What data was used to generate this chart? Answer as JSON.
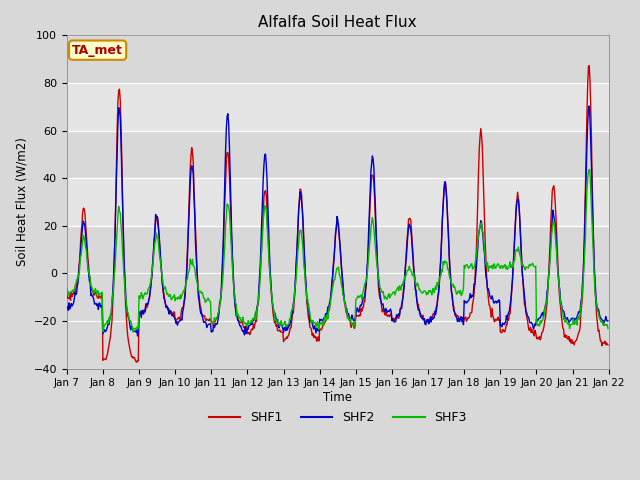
{
  "title": "Alfalfa Soil Heat Flux",
  "ylabel": "Soil Heat Flux (W/m2)",
  "xlabel": "Time",
  "ylim": [
    -40,
    100
  ],
  "xlim": [
    0,
    360
  ],
  "yticks": [
    -40,
    -20,
    0,
    20,
    40,
    60,
    80,
    100
  ],
  "shf1_color": "#cc0000",
  "shf2_color": "#0000cc",
  "shf3_color": "#00bb00",
  "fig_facecolor": "#d8d8d8",
  "ax_facecolor": "#d8d8d8",
  "annotation_text": "TA_met",
  "annotation_bg": "#ffffcc",
  "annotation_border": "#cc8800",
  "legend_labels": [
    "SHF1",
    "SHF2",
    "SHF3"
  ],
  "tick_labels": [
    "Jan 7",
    "Jan 8",
    "Jan 9",
    "Jan 10",
    "Jan 11",
    "Jan 12",
    "Jan 13",
    "Jan 14",
    "Jan 15",
    "Jan 16",
    "Jan 17",
    "Jan 18",
    "Jan 19",
    "Jan 20",
    "Jan 21",
    "Jan 22"
  ],
  "tick_positions": [
    0,
    24,
    48,
    72,
    96,
    120,
    144,
    168,
    192,
    216,
    240,
    264,
    288,
    312,
    336,
    360
  ],
  "hband_color": "#c0c0c0",
  "hband_ranges": [
    [
      20,
      40
    ],
    [
      60,
      80
    ]
  ],
  "linewidth": 1.0
}
